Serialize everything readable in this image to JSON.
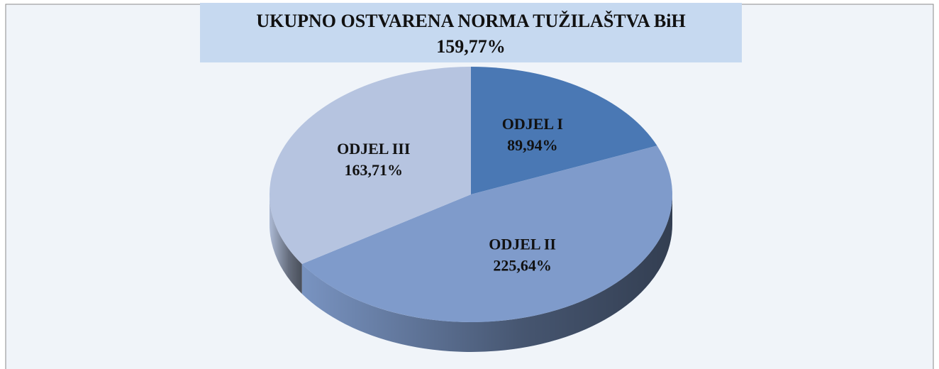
{
  "chart_data": {
    "type": "pie",
    "title": "UKUPNO OSTVARENA NORMA TUŽILAŠTVA BiH",
    "subtitle": "159,77%",
    "categories": [
      "ODJEL I",
      "ODJEL II",
      "ODJEL III"
    ],
    "values": [
      89.94,
      225.64,
      163.71
    ],
    "value_labels": [
      "89,94%",
      "225,64%",
      "163,71%"
    ],
    "colors": [
      "#4a78b4",
      "#7f9bcb",
      "#b6c4e0"
    ]
  }
}
